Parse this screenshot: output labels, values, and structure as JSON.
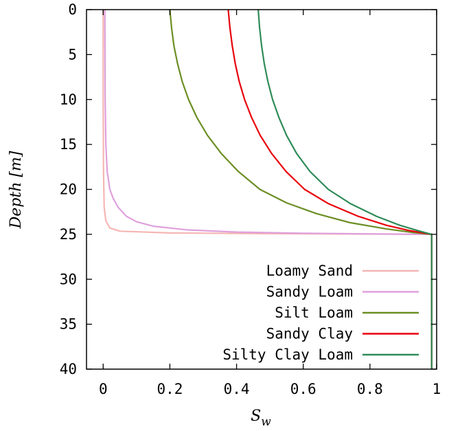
{
  "chart_data": {
    "type": "line",
    "xlabel": "S",
    "xlabel_sub": "w",
    "ylabel": "Depth [m]",
    "xlim": [
      -0.05,
      1.0
    ],
    "ylim": [
      0,
      40
    ],
    "y_inverted": true,
    "xticks": [
      0,
      0.2,
      0.4,
      0.6,
      0.8,
      1
    ],
    "xtick_labels": [
      "0",
      "0.2",
      "0.4",
      "0.6",
      "0.8",
      "1"
    ],
    "yticks": [
      0,
      5,
      10,
      15,
      20,
      25,
      30,
      35,
      40
    ],
    "ytick_labels": [
      "0",
      "5",
      "10",
      "15",
      "20",
      "25",
      "30",
      "35",
      "40"
    ],
    "grid": false,
    "legend_position": "bottom-right",
    "series": [
      {
        "name": "Loamy Sand",
        "color": "#f4b6b4",
        "points": [
          [
            0.0,
            0
          ],
          [
            0.0,
            10
          ],
          [
            0.001,
            18
          ],
          [
            0.003,
            22
          ],
          [
            0.008,
            23.5
          ],
          [
            0.02,
            24.3
          ],
          [
            0.05,
            24.65
          ],
          [
            0.2,
            24.85
          ],
          [
            0.5,
            24.93
          ],
          [
            0.985,
            25
          ],
          [
            0.985,
            40
          ]
        ]
      },
      {
        "name": "Sandy Loam",
        "color": "#dfa0dc",
        "points": [
          [
            0.005,
            0
          ],
          [
            0.006,
            10
          ],
          [
            0.008,
            15
          ],
          [
            0.012,
            18
          ],
          [
            0.02,
            20
          ],
          [
            0.03,
            21
          ],
          [
            0.045,
            22
          ],
          [
            0.07,
            23
          ],
          [
            0.1,
            23.6
          ],
          [
            0.15,
            24.1
          ],
          [
            0.25,
            24.5
          ],
          [
            0.4,
            24.75
          ],
          [
            0.6,
            24.88
          ],
          [
            0.8,
            24.95
          ],
          [
            0.985,
            25
          ],
          [
            0.985,
            40
          ]
        ]
      },
      {
        "name": "Silt Loam",
        "color": "#6b8e23",
        "points": [
          [
            0.2,
            0
          ],
          [
            0.205,
            2
          ],
          [
            0.212,
            4
          ],
          [
            0.223,
            6
          ],
          [
            0.237,
            8
          ],
          [
            0.256,
            10
          ],
          [
            0.281,
            12
          ],
          [
            0.313,
            14
          ],
          [
            0.354,
            16
          ],
          [
            0.405,
            18
          ],
          [
            0.47,
            20
          ],
          [
            0.55,
            21.5
          ],
          [
            0.64,
            22.7
          ],
          [
            0.74,
            23.7
          ],
          [
            0.85,
            24.4
          ],
          [
            0.93,
            24.8
          ],
          [
            0.985,
            25
          ],
          [
            0.985,
            40
          ]
        ]
      },
      {
        "name": "Sandy Clay",
        "color": "#e8000b",
        "points": [
          [
            0.375,
            0
          ],
          [
            0.38,
            2
          ],
          [
            0.387,
            4
          ],
          [
            0.396,
            6
          ],
          [
            0.408,
            8
          ],
          [
            0.424,
            10
          ],
          [
            0.445,
            12
          ],
          [
            0.471,
            14
          ],
          [
            0.505,
            16
          ],
          [
            0.548,
            18
          ],
          [
            0.604,
            20
          ],
          [
            0.676,
            21.6
          ],
          [
            0.765,
            23
          ],
          [
            0.85,
            24
          ],
          [
            0.92,
            24.6
          ],
          [
            0.985,
            25
          ],
          [
            0.985,
            40
          ]
        ]
      },
      {
        "name": "Silty Clay Loam",
        "color": "#2e8b57",
        "points": [
          [
            0.465,
            0
          ],
          [
            0.469,
            2
          ],
          [
            0.475,
            4
          ],
          [
            0.483,
            6
          ],
          [
            0.494,
            8
          ],
          [
            0.508,
            10
          ],
          [
            0.527,
            12
          ],
          [
            0.55,
            14
          ],
          [
            0.58,
            16
          ],
          [
            0.62,
            18
          ],
          [
            0.675,
            20
          ],
          [
            0.742,
            21.6
          ],
          [
            0.82,
            23
          ],
          [
            0.89,
            24
          ],
          [
            0.945,
            24.6
          ],
          [
            0.985,
            25
          ],
          [
            0.985,
            40
          ]
        ]
      }
    ]
  }
}
